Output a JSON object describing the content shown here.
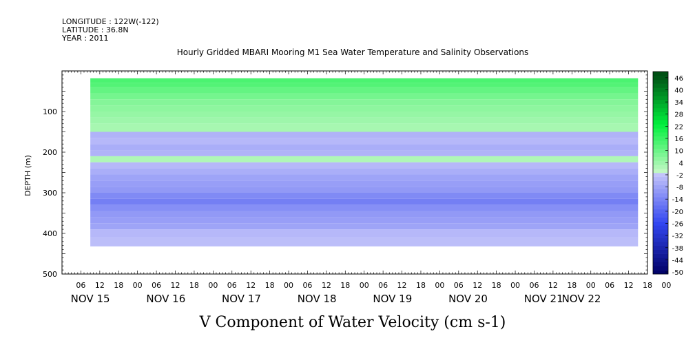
{
  "header": {
    "longitude": "LONGITUDE : 122W(-122)",
    "latitude": "LATITUDE : 36.8N",
    "year": "YEAR : 2011"
  },
  "chart_data": {
    "type": "heatmap",
    "title": "Hourly Gridded MBARI Mooring M1 Sea Water Temperature and Salinity Observations",
    "xlabel": "V Component of Water Velocity (cm s-1)",
    "ylabel": "DEPTH (m)",
    "ylim": [
      500,
      0
    ],
    "y_ticks": [
      100,
      200,
      300,
      400,
      500
    ],
    "x_range_hours": [
      0,
      186
    ],
    "x_hour_tick_labels": [
      "06",
      "12",
      "18",
      "00",
      "06",
      "12",
      "18",
      "00",
      "06",
      "12",
      "18",
      "00",
      "06",
      "12",
      "18",
      "00",
      "06",
      "12",
      "18",
      "00",
      "06",
      "12",
      "18",
      "00",
      "06",
      "12",
      "18",
      "00",
      "06",
      "12",
      "18",
      "00"
    ],
    "x_date_labels": [
      {
        "label": "NOV 15",
        "hour": 9
      },
      {
        "label": "NOV 16",
        "hour": 33
      },
      {
        "label": "NOV 17",
        "hour": 57
      },
      {
        "label": "NOV 18",
        "hour": 81
      },
      {
        "label": "NOV 19",
        "hour": 105
      },
      {
        "label": "NOV 20",
        "hour": 129
      },
      {
        "label": "NOV 21",
        "hour": 153
      },
      {
        "label": "NOV 22",
        "hour": 165
      }
    ],
    "data_x_range_hours": [
      9,
      183
    ],
    "colorbar": {
      "levels": [
        -50,
        -48,
        -46,
        -44,
        -42,
        -40,
        -38,
        -36,
        -34,
        -32,
        -30,
        -28,
        -26,
        -24,
        -22,
        -20,
        -18,
        -16,
        -14,
        -12,
        -10,
        -8,
        -6,
        -4,
        -2,
        0,
        2,
        4,
        6,
        8,
        10,
        12,
        14,
        16,
        18,
        20,
        22,
        24,
        26,
        28,
        30,
        32,
        34,
        36,
        38,
        40,
        42,
        44,
        46,
        48
      ],
      "tick_labels": [
        "46",
        "40",
        "34",
        "28",
        "22",
        "16",
        "10",
        "4",
        "-2",
        "-8",
        "-14",
        "-20",
        "-26",
        "-32",
        "-38",
        "-44",
        "-50"
      ],
      "tick_values": [
        46,
        40,
        34,
        28,
        22,
        16,
        10,
        4,
        -2,
        -8,
        -14,
        -20,
        -26,
        -32,
        -38,
        -44,
        -50
      ]
    },
    "depth_profile": [
      {
        "top": 18,
        "bottom": 30,
        "value": 15
      },
      {
        "top": 30,
        "bottom": 40,
        "value": 14
      },
      {
        "top": 40,
        "bottom": 55,
        "value": 12
      },
      {
        "top": 55,
        "bottom": 70,
        "value": 10
      },
      {
        "top": 70,
        "bottom": 85,
        "value": 8
      },
      {
        "top": 85,
        "bottom": 100,
        "value": 7
      },
      {
        "top": 100,
        "bottom": 115,
        "value": 6
      },
      {
        "top": 115,
        "bottom": 130,
        "value": 5
      },
      {
        "top": 130,
        "bottom": 150,
        "value": 4
      },
      {
        "top": 150,
        "bottom": 165,
        "value": -4
      },
      {
        "top": 165,
        "bottom": 180,
        "value": -3
      },
      {
        "top": 180,
        "bottom": 195,
        "value": -5
      },
      {
        "top": 195,
        "bottom": 210,
        "value": -4
      },
      {
        "top": 210,
        "bottom": 225,
        "value": 3
      },
      {
        "top": 225,
        "bottom": 240,
        "value": -3
      },
      {
        "top": 240,
        "bottom": 255,
        "value": -5
      },
      {
        "top": 255,
        "bottom": 270,
        "value": -7
      },
      {
        "top": 270,
        "bottom": 285,
        "value": -8
      },
      {
        "top": 285,
        "bottom": 300,
        "value": -9
      },
      {
        "top": 300,
        "bottom": 315,
        "value": -12
      },
      {
        "top": 315,
        "bottom": 330,
        "value": -14
      },
      {
        "top": 330,
        "bottom": 345,
        "value": -11
      },
      {
        "top": 345,
        "bottom": 360,
        "value": -9
      },
      {
        "top": 360,
        "bottom": 375,
        "value": -8
      },
      {
        "top": 375,
        "bottom": 390,
        "value": -7
      },
      {
        "top": 390,
        "bottom": 410,
        "value": -3
      },
      {
        "top": 410,
        "bottom": 432,
        "value": -2
      }
    ]
  }
}
